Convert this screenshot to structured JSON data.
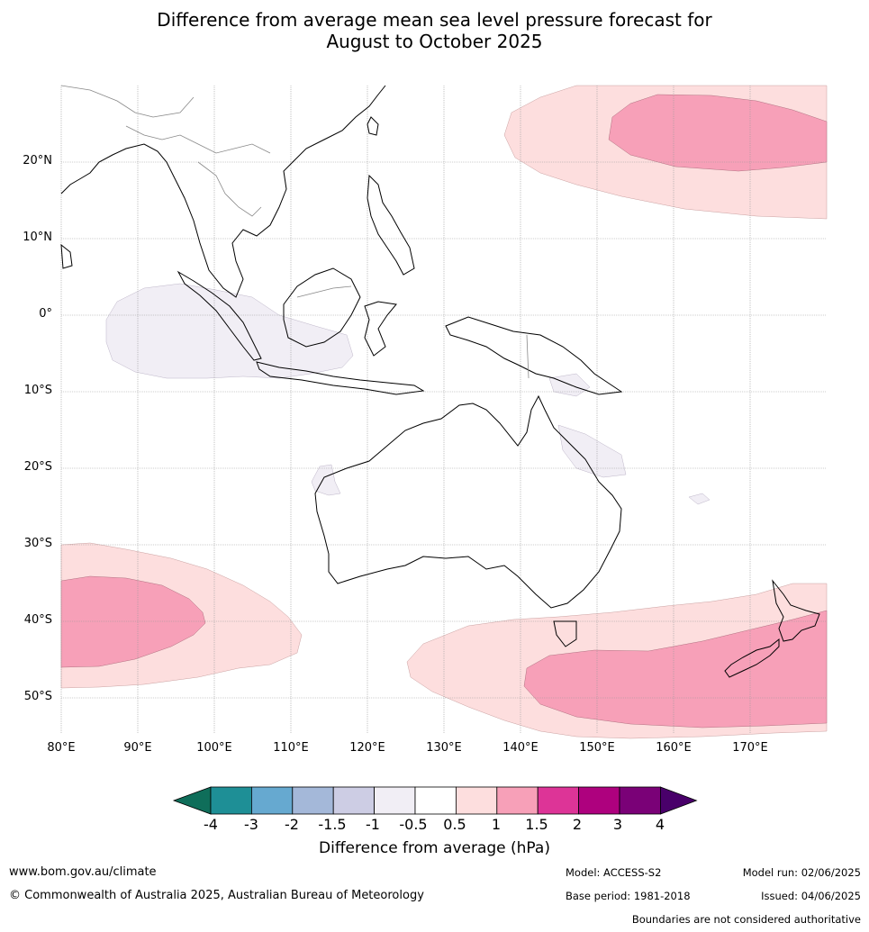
{
  "title": {
    "line1": "Difference from average mean sea level pressure forecast for",
    "line2": "August to October 2025"
  },
  "map": {
    "lat_labels": [
      "20°N",
      "10°N",
      "0°",
      "10°S",
      "20°S",
      "30°S",
      "40°S",
      "50°S"
    ],
    "lon_labels": [
      "80°E",
      "90°E",
      "100°E",
      "110°E",
      "120°E",
      "130°E",
      "140°E",
      "150°E",
      "160°E",
      "170°E"
    ],
    "extent": {
      "lon": [
        80,
        180
      ],
      "lat": [
        -55,
        30
      ]
    },
    "anomaly_colors": {
      "pos_0_5_1": "#fddede",
      "pos_1_1_5": "#f7a0b8",
      "neg_0_5_1": "#f1eef5"
    }
  },
  "colorbar": {
    "title": "Difference from average (hPa)",
    "ticks": [
      "-4",
      "-3",
      "-2",
      "-1.5",
      "-1",
      "-0.5",
      "0.5",
      "1",
      "1.5",
      "2",
      "3",
      "4"
    ],
    "colors": [
      "#0f6e5a",
      "#1e8f96",
      "#66a9d0",
      "#a4b8d9",
      "#cdcde4",
      "#f1eef5",
      "#ffffff",
      "#fddede",
      "#f7a0b8",
      "#dd3497",
      "#ae017e",
      "#7a0177",
      "#49006a"
    ]
  },
  "footer": {
    "website": "www.bom.gov.au/climate",
    "copyright": "© Commonwealth of Australia 2025, Australian Bureau of Meteorology",
    "model": "Model: ACCESS-S2",
    "base_period": "Base period: 1981-2018",
    "model_run": "Model run: 02/06/2025",
    "issued": "Issued: 04/06/2025",
    "disclaimer": "Boundaries are not considered authoritative"
  }
}
